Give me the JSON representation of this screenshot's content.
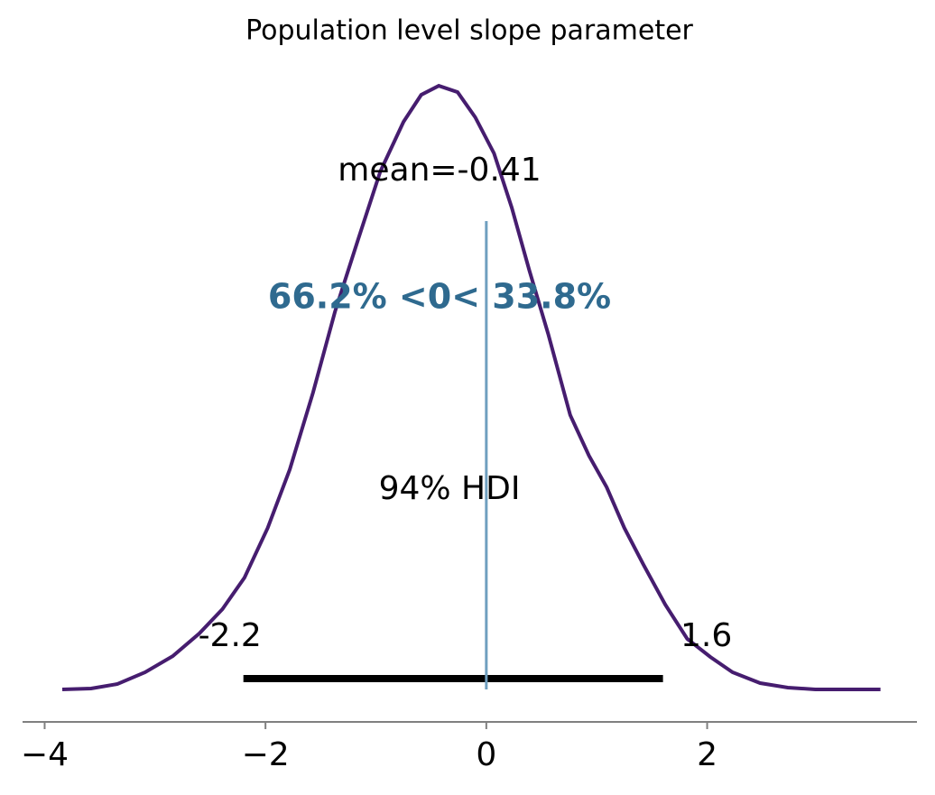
{
  "chart_data": {
    "type": "density",
    "title": "Population level slope parameter",
    "x": [
      -3.84,
      -3.58,
      -3.34,
      -3.09,
      -2.84,
      -2.6,
      -2.39,
      -2.19,
      -1.98,
      -1.78,
      -1.57,
      -1.37,
      -1.16,
      -0.96,
      -0.75,
      -0.59,
      -0.43,
      -0.26,
      -0.1,
      0.07,
      0.23,
      0.39,
      0.56,
      0.76,
      0.93,
      1.09,
      1.25,
      1.42,
      1.62,
      1.82,
      2.03,
      2.23,
      2.48,
      2.73,
      2.98,
      3.22,
      3.57
    ],
    "values": [
      0,
      0.0006,
      0.0036,
      0.0114,
      0.0221,
      0.0371,
      0.0532,
      0.0741,
      0.107,
      0.1458,
      0.1966,
      0.2504,
      0.2983,
      0.3432,
      0.3761,
      0.394,
      0.4,
      0.3958,
      0.3791,
      0.3552,
      0.3193,
      0.2775,
      0.2356,
      0.1818,
      0.1549,
      0.134,
      0.107,
      0.0831,
      0.0562,
      0.0335,
      0.0215,
      0.0114,
      0.0042,
      0.0012,
      0,
      0,
      0
    ],
    "color": "#461d6f",
    "xlim": [
      -4.2,
      3.9
    ],
    "ylim": [
      -0.0215,
      0.409
    ],
    "xticks": [
      {
        "value": -4,
        "label": "−4"
      },
      {
        "value": -2,
        "label": "−2"
      },
      0,
      2
    ],
    "mean_label": "mean=-0.41",
    "ref_val": 0,
    "ref_color": "#6f9fbf",
    "ref_label": "66.2% <0< 33.8%",
    "ref_label_color": "#2f6a8f",
    "hdi": [
      -2.2,
      1.6
    ],
    "hdi_label": "94% HDI"
  }
}
